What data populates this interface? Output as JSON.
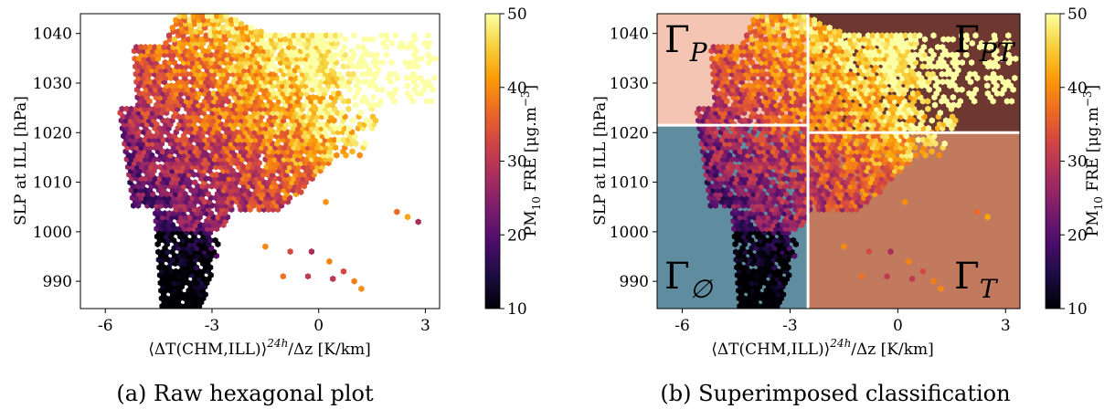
{
  "colors": {
    "region_P": "#f4c5b2",
    "region_PT": "#6e3730",
    "region_empty": "#5f8d9f",
    "region_T": "#c27a5f",
    "divider": "#ffffff",
    "colormap": [
      "#000004",
      "#1b0c41",
      "#4a0c6b",
      "#781c6d",
      "#a52c60",
      "#cf4446",
      "#ed6925",
      "#fb9b06",
      "#f7d13d",
      "#fcffa4"
    ]
  },
  "chart_data": [
    {
      "id": "a",
      "type": "hexbin",
      "caption": "(a) Raw hexagonal plot",
      "xlabel": "⟨ΔT(CHM,ILL)⟩",
      "xlabel_sup": "24h",
      "xlabel_tail": "/Δz [K/km]",
      "ylabel": "SLP at ILL [hPa]",
      "xlim": [
        -6.7,
        3.4
      ],
      "ylim": [
        984.5,
        1044
      ],
      "xticks": [
        -6,
        -3,
        0,
        3
      ],
      "xtick_labels": [
        "-6",
        "-3",
        "0",
        "3"
      ],
      "yticks": [
        990,
        1000,
        1010,
        1020,
        1030,
        1040
      ],
      "ytick_labels": [
        "990",
        "1000",
        "1010",
        "1020",
        "1030",
        "1040"
      ],
      "colorbar": {
        "label_main": "PM",
        "label_sub": "10",
        "label_rest": " FRE [μg.m",
        "label_sup": "−3",
        "label_end": "]",
        "range": [
          10,
          50
        ],
        "ticks": [
          10,
          20,
          30,
          40,
          50
        ],
        "tick_labels": [
          "10",
          "20",
          "30",
          "40",
          "50"
        ]
      },
      "description_of_values": "hexagonal bins of PM10 concentration vs temperature gradient and sea-level pressure"
    },
    {
      "id": "b",
      "type": "hexbin",
      "caption": "(b) Superimposed classification",
      "xlabel": "⟨ΔT(CHM,ILL)⟩",
      "xlabel_sup": "24h",
      "xlabel_tail": "/Δz [K/km]",
      "ylabel": "SLP at ILL [hPa]",
      "xlim": [
        -6.7,
        3.4
      ],
      "ylim": [
        984.5,
        1044
      ],
      "xticks": [
        -6,
        -3,
        0,
        3
      ],
      "xtick_labels": [
        "-6",
        "-3",
        "0",
        "3"
      ],
      "yticks": [
        990,
        1000,
        1010,
        1020,
        1030,
        1040
      ],
      "ytick_labels": [
        "990",
        "1000",
        "1010",
        "1020",
        "1030",
        "1040"
      ],
      "thresholds": {
        "x_split": -2.5,
        "y_split_left": 1021.5,
        "y_split_right": 1020
      },
      "regions": [
        {
          "name": "Γ",
          "sub": "P",
          "quadrant": "top-left"
        },
        {
          "name": "Γ",
          "sub": "PT",
          "quadrant": "top-right"
        },
        {
          "name": "Γ",
          "sub": "∅",
          "quadrant": "bottom-left"
        },
        {
          "name": "Γ",
          "sub": "T",
          "quadrant": "bottom-right"
        }
      ],
      "colorbar": {
        "label_main": "PM",
        "label_sub": "10",
        "label_rest": " FRE [μg.m",
        "label_sup": "−3",
        "label_end": "]",
        "range": [
          10,
          50
        ],
        "ticks": [
          10,
          20,
          30,
          40,
          50
        ],
        "tick_labels": [
          "10",
          "20",
          "30",
          "40",
          "50"
        ]
      }
    }
  ]
}
